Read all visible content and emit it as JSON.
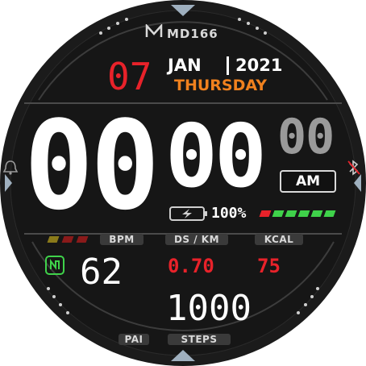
{
  "brand": {
    "logo": "M",
    "name": "MD166"
  },
  "date": {
    "day": "07",
    "month": "JAN",
    "year": "2021",
    "weekday": "THURSDAY"
  },
  "time": {
    "hours": "00",
    "minutes": "00",
    "seconds": "00",
    "ampm": "AM"
  },
  "battery": {
    "percent_text": "100%",
    "level": 1.0,
    "segments_on": 6,
    "segments_red": 1
  },
  "stats": {
    "bpm_label": "BPM",
    "bpm_value": "62",
    "distance_label": "DS / KM",
    "distance_value": "0.70",
    "kcal_label": "KCAL",
    "kcal_value": "75",
    "steps_value": "1000",
    "steps_label": "STEPS",
    "pai_label": "PAI"
  },
  "icons": {
    "alarm": "alarm-bell-icon",
    "bluetooth": "bluetooth-off-icon",
    "charging": "battery-charging-icon",
    "pai": "pai-badge-icon"
  },
  "colors": {
    "background": "#141414",
    "accent_red": "#e8222a",
    "accent_orange": "#f0811e",
    "accent_green": "#3fd24a",
    "white": "#ffffff",
    "grey": "#9a9a9a"
  }
}
